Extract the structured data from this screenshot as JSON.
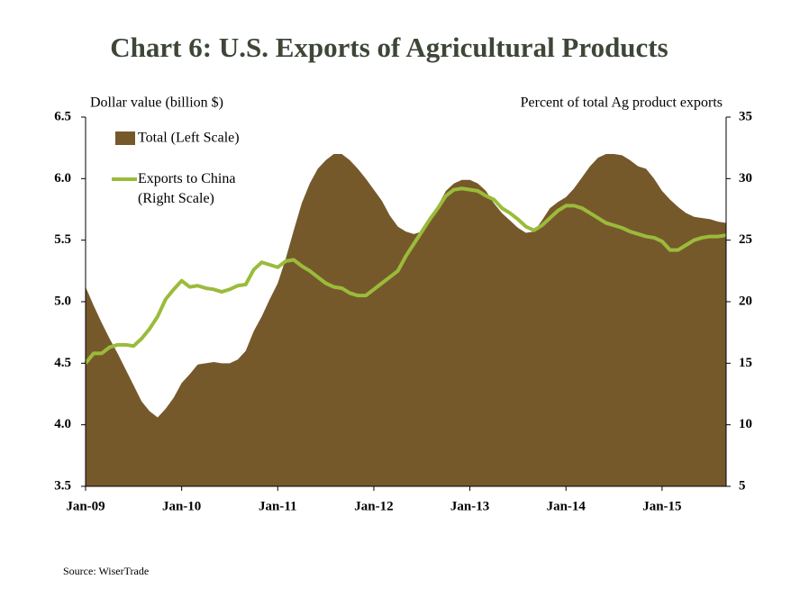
{
  "chart_data": {
    "type": "area-line",
    "title": "Chart 6: U.S. Exports of Agricultural Products",
    "y_label": "Dollar value (billion $)",
    "y2_label": "Percent of total Ag product exports",
    "source": "Source: WiserTrade",
    "categories": [
      "Jan-09",
      null,
      null,
      null,
      null,
      null,
      null,
      null,
      null,
      null,
      null,
      null,
      "Jan-10",
      null,
      null,
      null,
      null,
      null,
      null,
      null,
      null,
      null,
      null,
      null,
      "Jan-11",
      null,
      null,
      null,
      null,
      null,
      null,
      null,
      null,
      null,
      null,
      null,
      "Jan-12",
      null,
      null,
      null,
      null,
      null,
      null,
      null,
      null,
      null,
      null,
      null,
      "Jan-13",
      null,
      null,
      null,
      null,
      null,
      null,
      null,
      null,
      null,
      null,
      null,
      "Jan-14",
      null,
      null,
      null,
      null,
      null,
      null,
      null,
      null,
      null,
      null,
      null,
      "Jan-15",
      null,
      null,
      null,
      null,
      null,
      null,
      null,
      null
    ],
    "series": [
      {
        "name": "Total (Left Scale)",
        "color": "#76592b",
        "values": [
          5.12,
          4.97,
          4.83,
          4.7,
          4.58,
          4.45,
          4.32,
          4.19,
          4.11,
          4.06,
          4.13,
          4.22,
          4.34,
          4.41,
          4.49,
          4.5,
          4.51,
          4.5,
          4.5,
          4.53,
          4.6,
          4.76,
          4.88,
          5.02,
          5.15,
          5.35,
          5.58,
          5.8,
          5.96,
          6.08,
          6.15,
          6.2,
          6.2,
          6.15,
          6.08,
          6.0,
          5.91,
          5.82,
          5.7,
          5.61,
          5.57,
          5.55,
          5.57,
          5.65,
          5.78,
          5.9,
          5.96,
          5.99,
          5.99,
          5.96,
          5.9,
          5.8,
          5.72,
          5.66,
          5.6,
          5.56,
          5.57,
          5.66,
          5.76,
          5.81,
          5.85,
          5.92,
          6.01,
          6.1,
          6.17,
          6.2,
          6.2,
          6.19,
          6.15,
          6.1,
          6.08,
          6.0,
          5.9,
          5.83,
          5.77,
          5.72,
          5.69,
          5.68,
          5.67,
          5.65,
          5.64
        ]
      },
      {
        "name": "Exports to China (Right Scale)",
        "color": "#9bbb3b",
        "axis": "y2",
        "values": [
          15,
          15.8,
          15.8,
          16.3,
          16.5,
          16.5,
          16.4,
          17,
          17.8,
          18.8,
          20.2,
          21,
          21.7,
          21.2,
          21.3,
          21.1,
          21.0,
          20.8,
          21.0,
          21.3,
          21.4,
          22.6,
          23.2,
          23.0,
          22.8,
          23.3,
          23.4,
          22.9,
          22.5,
          22.0,
          21.5,
          21.2,
          21.1,
          20.7,
          20.5,
          20.5,
          21.0,
          21.5,
          22.0,
          22.5,
          23.7,
          24.7,
          25.7,
          26.7,
          27.6,
          28.6,
          29.1,
          29.2,
          29.1,
          29.0,
          28.6,
          28.3,
          27.6,
          27.2,
          26.7,
          26.1,
          25.8,
          26.2,
          26.8,
          27.4,
          27.8,
          27.8,
          27.6,
          27.2,
          26.8,
          26.4,
          26.2,
          26.0,
          25.7,
          25.5,
          25.3,
          25.2,
          24.9,
          24.2,
          24.2,
          24.6,
          25.0,
          25.2,
          25.3,
          25.3,
          25.4
        ]
      }
    ],
    "ylim": [
      3.5,
      6.5
    ],
    "yticks": [
      3.5,
      {
        "value": 4,
        "label": "4.0"
      },
      4.5,
      {
        "value": 5,
        "label": "5.0"
      },
      5.5,
      {
        "value": 6,
        "label": "6.0"
      },
      6.5
    ],
    "y2lim": [
      5,
      35
    ],
    "y2ticks": [
      5,
      10,
      15,
      20,
      25,
      30,
      35
    ],
    "grid": false
  }
}
